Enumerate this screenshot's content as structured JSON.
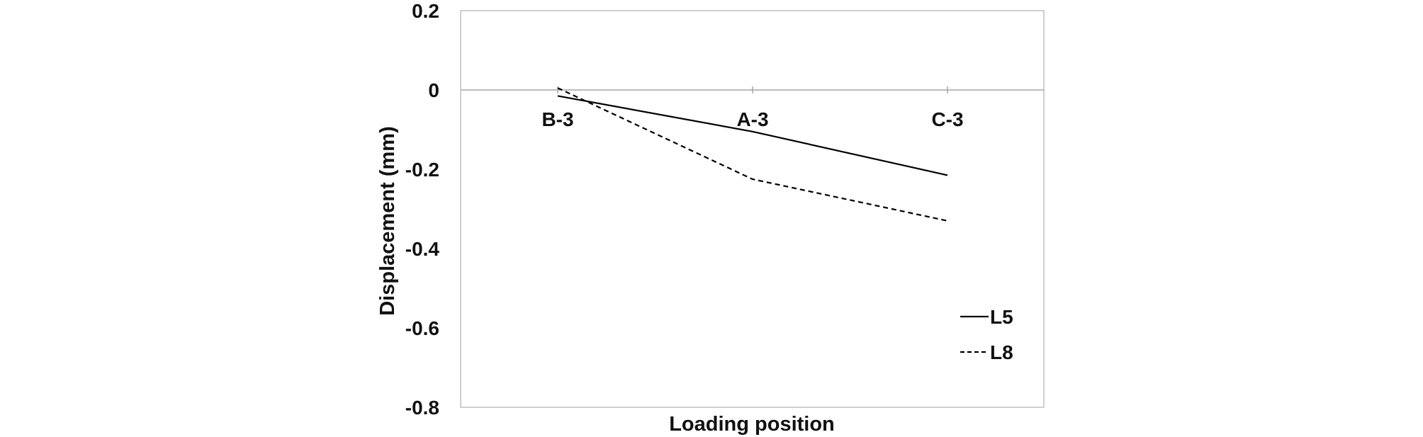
{
  "chart_data": {
    "type": "line",
    "title": "",
    "xlabel": "Loading position",
    "ylabel": "Displacement (mm)",
    "categories": [
      "B-3",
      "A-3",
      "C-3"
    ],
    "ylim": [
      -0.8,
      0.2
    ],
    "yticks": [
      0.2,
      0,
      -0.2,
      -0.4,
      -0.6,
      -0.8
    ],
    "ytick_labels": [
      "0.2",
      "0",
      "-0.2",
      "-0.4",
      "-0.6",
      "-0.8"
    ],
    "grid": false,
    "legend_position": "right",
    "series": [
      {
        "name": "L5",
        "values": [
          -0.015,
          -0.105,
          -0.215
        ],
        "line_style": "solid",
        "color": "#000000"
      },
      {
        "name": "L8",
        "values": [
          0.005,
          -0.225,
          -0.33
        ],
        "line_style": "dashed",
        "color": "#000000"
      }
    ]
  }
}
